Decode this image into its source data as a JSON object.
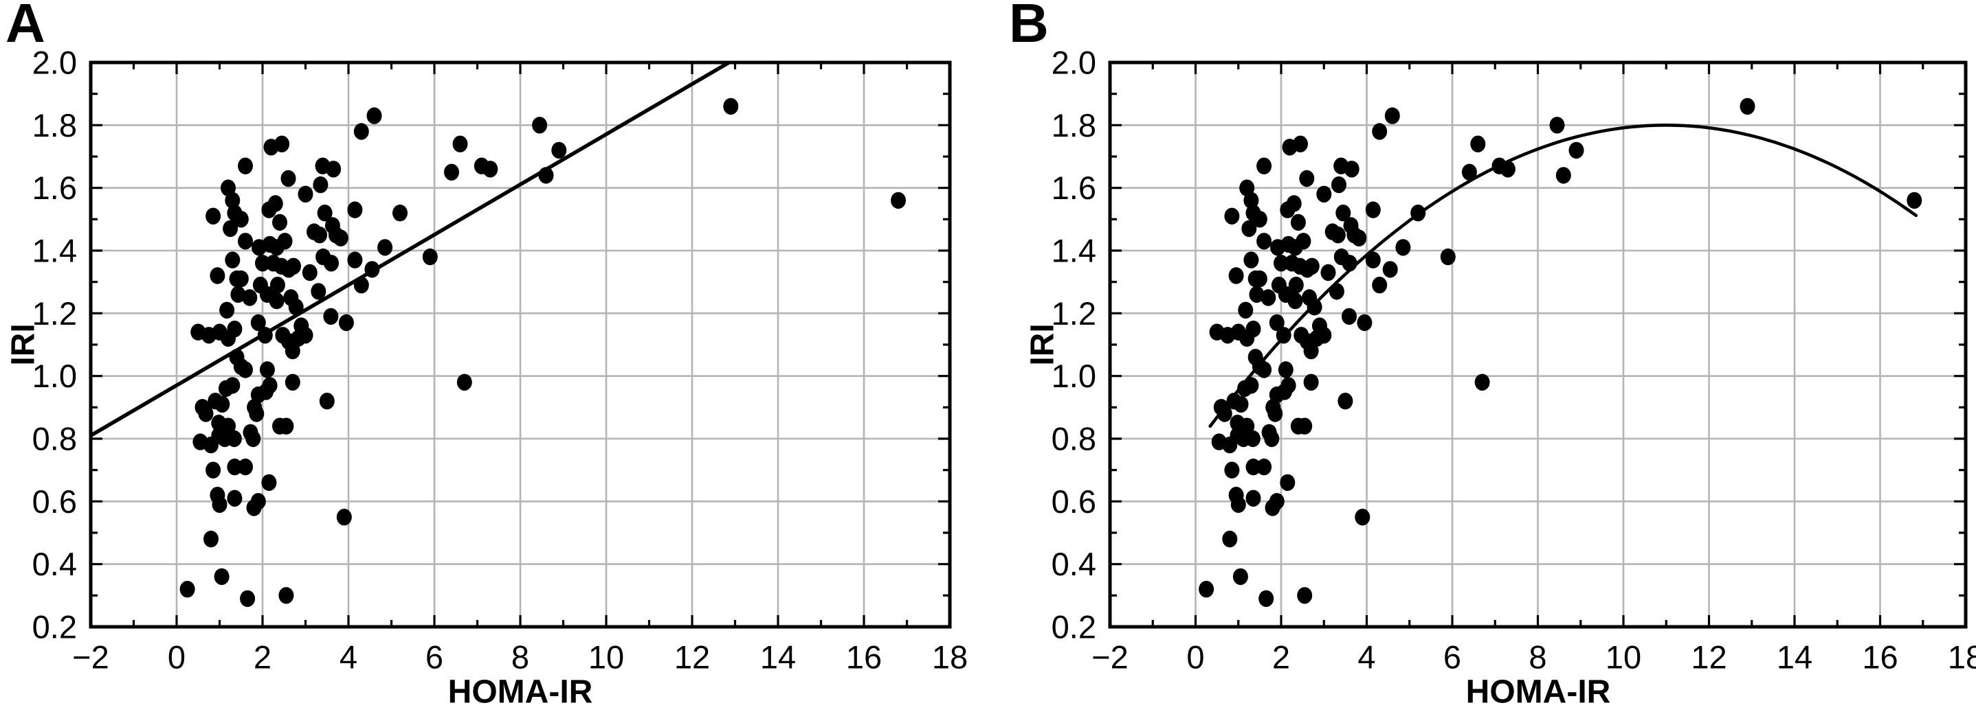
{
  "chart_data": {
    "type": "scatter",
    "background_color": "#ffffff",
    "point_color": "#000000",
    "grid_color": "#b4b4b4",
    "axis_color": "#000000",
    "fit_color": "#000000",
    "panels": [
      {
        "title": "A",
        "xlabel": "HOMA-IR",
        "ylabel": "IRI",
        "xlim": [
          -2,
          18
        ],
        "ylim": [
          0.2,
          2.0
        ],
        "x_major_ticks": [
          -2,
          0,
          2,
          4,
          6,
          8,
          10,
          12,
          14,
          16,
          18
        ],
        "x_tick_labels": [
          "−2",
          "0",
          "2",
          "4",
          "6",
          "8",
          "10",
          "12",
          "14",
          "16",
          "18"
        ],
        "x_minor_step": 1,
        "y_major_ticks": [
          0.2,
          0.4,
          0.6,
          0.8,
          1.0,
          1.2,
          1.4,
          1.6,
          1.8,
          2.0
        ],
        "y_tick_labels": [
          "0.2",
          "0.4",
          "0.6",
          "0.8",
          "1.0",
          "1.2",
          "1.4",
          "1.6",
          "1.8",
          "2.0"
        ],
        "y_minor_step": 0.1,
        "grid": "major",
        "legend": "none",
        "fit": {
          "type": "linear",
          "x1": -2,
          "y1": 0.81,
          "x2": 12.86,
          "y2": 2.0
        }
      },
      {
        "title": "B",
        "xlabel": "HOMA-IR",
        "ylabel": "IRI",
        "xlim": [
          -2,
          18
        ],
        "ylim": [
          0.2,
          2.0
        ],
        "x_major_ticks": [
          -2,
          0,
          2,
          4,
          6,
          8,
          10,
          12,
          14,
          16,
          18
        ],
        "x_tick_labels": [
          "−2",
          "0",
          "2",
          "4",
          "6",
          "8",
          "10",
          "12",
          "14",
          "16",
          "18"
        ],
        "x_minor_step": 1,
        "y_major_ticks": [
          0.2,
          0.4,
          0.6,
          0.8,
          1.0,
          1.2,
          1.4,
          1.6,
          1.8,
          2.0
        ],
        "y_tick_labels": [
          "0.2",
          "0.4",
          "0.6",
          "0.8",
          "1.0",
          "1.2",
          "1.4",
          "1.6",
          "1.8",
          "2.0"
        ],
        "y_minor_step": 0.1,
        "grid": "major",
        "legend": "none",
        "fit": {
          "type": "quadratic",
          "vertex_x": 11.0,
          "vertex_y": 1.8,
          "coeff": -0.00845,
          "x_start": 0.34,
          "x_end": 16.85
        }
      }
    ],
    "points_shared_by_both_panels": true,
    "points": [
      [
        12.9,
        1.86
      ],
      [
        4.6,
        1.83
      ],
      [
        8.45,
        1.8
      ],
      [
        4.3,
        1.78
      ],
      [
        2.45,
        1.74
      ],
      [
        2.2,
        1.73
      ],
      [
        6.6,
        1.74
      ],
      [
        8.9,
        1.72
      ],
      [
        7.1,
        1.67
      ],
      [
        7.3,
        1.66
      ],
      [
        1.6,
        1.67
      ],
      [
        3.4,
        1.67
      ],
      [
        3.65,
        1.66
      ],
      [
        6.4,
        1.65
      ],
      [
        8.6,
        1.64
      ],
      [
        2.6,
        1.63
      ],
      [
        3.35,
        1.61
      ],
      [
        1.2,
        1.6
      ],
      [
        3.0,
        1.58
      ],
      [
        1.3,
        1.56
      ],
      [
        16.8,
        1.56
      ],
      [
        2.3,
        1.55
      ],
      [
        2.15,
        1.53
      ],
      [
        4.15,
        1.53
      ],
      [
        0.85,
        1.51
      ],
      [
        1.35,
        1.52
      ],
      [
        1.5,
        1.5
      ],
      [
        3.45,
        1.52
      ],
      [
        5.2,
        1.52
      ],
      [
        2.4,
        1.49
      ],
      [
        3.63,
        1.48
      ],
      [
        1.25,
        1.47
      ],
      [
        3.2,
        1.46
      ],
      [
        3.33,
        1.45
      ],
      [
        3.71,
        1.45
      ],
      [
        3.82,
        1.44
      ],
      [
        1.6,
        1.43
      ],
      [
        2.52,
        1.43
      ],
      [
        2.17,
        1.42
      ],
      [
        1.92,
        1.41
      ],
      [
        2.33,
        1.41
      ],
      [
        4.85,
        1.41
      ],
      [
        1.3,
        1.37
      ],
      [
        3.41,
        1.38
      ],
      [
        4.15,
        1.37
      ],
      [
        5.9,
        1.38
      ],
      [
        2.0,
        1.36
      ],
      [
        2.25,
        1.36
      ],
      [
        3.6,
        1.36
      ],
      [
        2.44,
        1.35
      ],
      [
        2.72,
        1.35
      ],
      [
        4.55,
        1.34
      ],
      [
        2.61,
        1.34
      ],
      [
        3.1,
        1.33
      ],
      [
        0.95,
        1.32
      ],
      [
        1.4,
        1.31
      ],
      [
        1.5,
        1.31
      ],
      [
        2.35,
        1.29
      ],
      [
        1.95,
        1.29
      ],
      [
        4.3,
        1.29
      ],
      [
        3.3,
        1.27
      ],
      [
        1.43,
        1.26
      ],
      [
        2.11,
        1.26
      ],
      [
        2.66,
        1.25
      ],
      [
        1.7,
        1.25
      ],
      [
        2.33,
        1.24
      ],
      [
        2.78,
        1.22
      ],
      [
        1.17,
        1.21
      ],
      [
        3.59,
        1.19
      ],
      [
        1.9,
        1.17
      ],
      [
        3.95,
        1.17
      ],
      [
        2.9,
        1.16
      ],
      [
        1.35,
        1.15
      ],
      [
        0.5,
        1.14
      ],
      [
        1.0,
        1.14
      ],
      [
        2.06,
        1.13
      ],
      [
        2.47,
        1.13
      ],
      [
        3.0,
        1.13
      ],
      [
        0.75,
        1.13
      ],
      [
        1.2,
        1.12
      ],
      [
        2.61,
        1.11
      ],
      [
        2.83,
        1.12
      ],
      [
        2.7,
        1.08
      ],
      [
        1.4,
        1.06
      ],
      [
        1.5,
        1.03
      ],
      [
        1.6,
        1.02
      ],
      [
        2.11,
        1.02
      ],
      [
        6.7,
        0.98
      ],
      [
        2.7,
        0.98
      ],
      [
        2.17,
        0.97
      ],
      [
        1.3,
        0.97
      ],
      [
        1.15,
        0.96
      ],
      [
        2.08,
        0.95
      ],
      [
        1.9,
        0.94
      ],
      [
        0.9,
        0.92
      ],
      [
        3.5,
        0.92
      ],
      [
        1.06,
        0.91
      ],
      [
        0.6,
        0.9
      ],
      [
        1.81,
        0.9
      ],
      [
        0.68,
        0.88
      ],
      [
        1.86,
        0.88
      ],
      [
        0.98,
        0.85
      ],
      [
        1.2,
        0.84
      ],
      [
        2.4,
        0.84
      ],
      [
        2.55,
        0.84
      ],
      [
        0.98,
        0.81
      ],
      [
        1.12,
        0.8
      ],
      [
        1.34,
        0.8
      ],
      [
        1.78,
        0.8
      ],
      [
        0.55,
        0.79
      ],
      [
        0.8,
        0.78
      ],
      [
        1.72,
        0.82
      ],
      [
        0.85,
        0.7
      ],
      [
        1.35,
        0.71
      ],
      [
        1.6,
        0.71
      ],
      [
        2.15,
        0.66
      ],
      [
        0.95,
        0.62
      ],
      [
        1.35,
        0.61
      ],
      [
        1.0,
        0.59
      ],
      [
        1.9,
        0.6
      ],
      [
        1.8,
        0.58
      ],
      [
        3.9,
        0.55
      ],
      [
        0.8,
        0.48
      ],
      [
        1.05,
        0.36
      ],
      [
        0.25,
        0.32
      ],
      [
        2.55,
        0.3
      ],
      [
        1.65,
        0.29
      ]
    ]
  }
}
